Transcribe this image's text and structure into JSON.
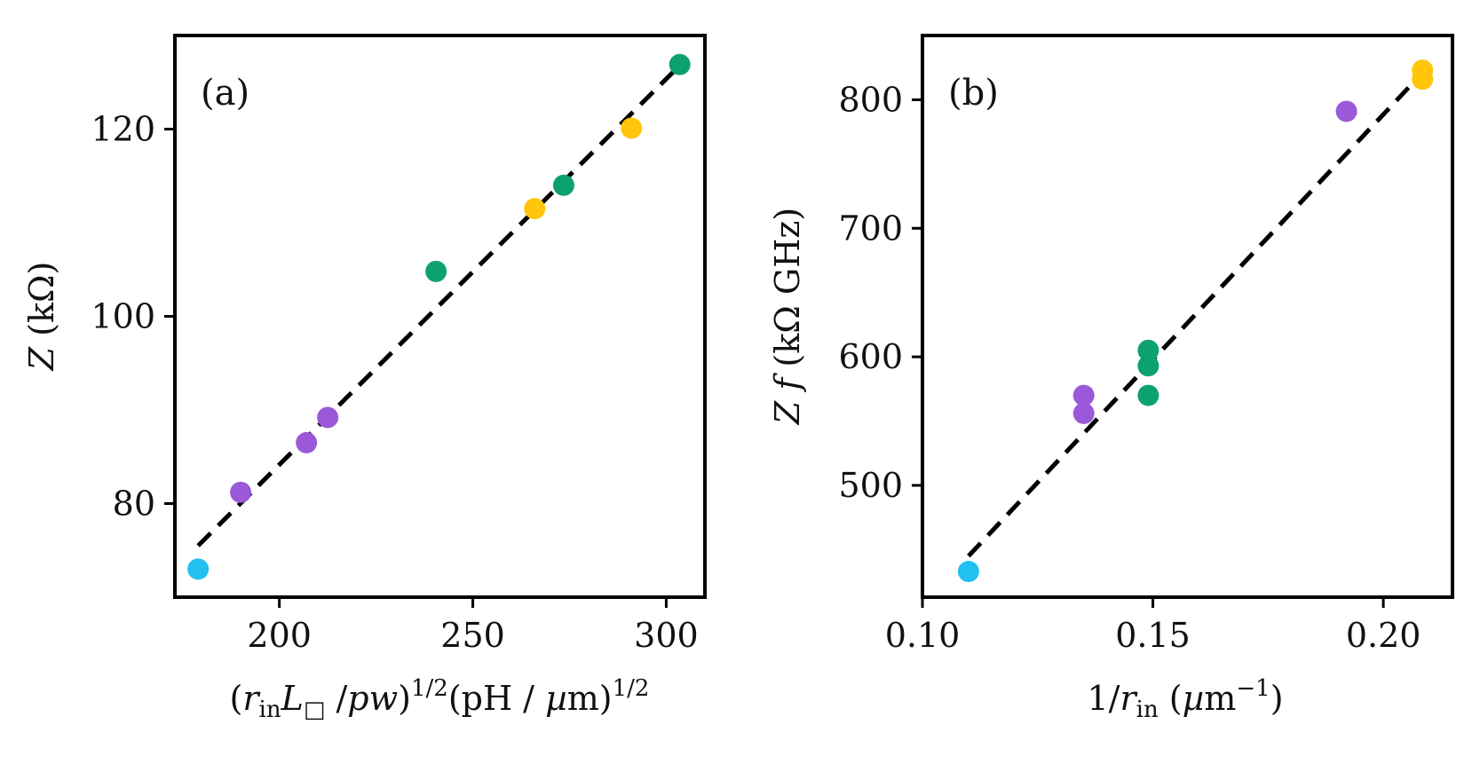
{
  "chart_data": [
    {
      "type": "scatter",
      "panel_label": "(a)",
      "xlabel": "(r_in L_□ / pw)^{1/2}(pH / µm)^{1/2}",
      "ylabel": "Z (kΩ)",
      "xlim": [
        173,
        310
      ],
      "ylim": [
        70,
        130
      ],
      "xticks": [
        200,
        250,
        300
      ],
      "xtick_labels": [
        "200",
        "250",
        "300"
      ],
      "yticks": [
        80,
        100,
        120
      ],
      "ytick_labels": [
        "80",
        "100",
        "120"
      ],
      "points": [
        {
          "x": 179,
          "y": 73,
          "color": "#22c0f0"
        },
        {
          "x": 190,
          "y": 81.2,
          "color": "#9b59d9"
        },
        {
          "x": 207,
          "y": 86.5,
          "color": "#9b59d9"
        },
        {
          "x": 212.5,
          "y": 89.2,
          "color": "#9b59d9"
        },
        {
          "x": 240.5,
          "y": 104.8,
          "color": "#0ea170"
        },
        {
          "x": 266,
          "y": 111.5,
          "color": "#ffc60a"
        },
        {
          "x": 273.5,
          "y": 114,
          "color": "#0ea170"
        },
        {
          "x": 291,
          "y": 120.1,
          "color": "#ffc60a"
        },
        {
          "x": 303.5,
          "y": 126.9,
          "color": "#0ea170"
        }
      ],
      "fit_line": {
        "x": [
          179,
          303.5
        ],
        "y": [
          75.5,
          126.8
        ]
      }
    },
    {
      "type": "scatter",
      "panel_label": "(b)",
      "xlabel": "1/r_in (µm^{-1})",
      "ylabel": "Z f (kΩ GHz)",
      "xlim": [
        0.1,
        0.215
      ],
      "ylim": [
        413,
        850
      ],
      "xticks": [
        0.1,
        0.15,
        0.2
      ],
      "xtick_labels": [
        "0.10",
        "0.15",
        "0.20"
      ],
      "yticks": [
        500,
        600,
        700,
        800
      ],
      "ytick_labels": [
        "500",
        "600",
        "700",
        "800"
      ],
      "points": [
        {
          "x": 0.11,
          "y": 433,
          "color": "#22c0f0"
        },
        {
          "x": 0.135,
          "y": 556,
          "color": "#9b59d9"
        },
        {
          "x": 0.135,
          "y": 570,
          "color": "#9b59d9"
        },
        {
          "x": 0.149,
          "y": 570,
          "color": "#0ea170"
        },
        {
          "x": 0.149,
          "y": 593,
          "color": "#0ea170"
        },
        {
          "x": 0.149,
          "y": 605,
          "color": "#0ea170"
        },
        {
          "x": 0.192,
          "y": 791,
          "color": "#9b59d9"
        },
        {
          "x": 0.2085,
          "y": 816,
          "color": "#ffc60a"
        },
        {
          "x": 0.2085,
          "y": 823,
          "color": "#ffc60a"
        }
      ],
      "fit_line": {
        "x": [
          0.11,
          0.2085
        ],
        "y": [
          445,
          821
        ]
      }
    }
  ]
}
